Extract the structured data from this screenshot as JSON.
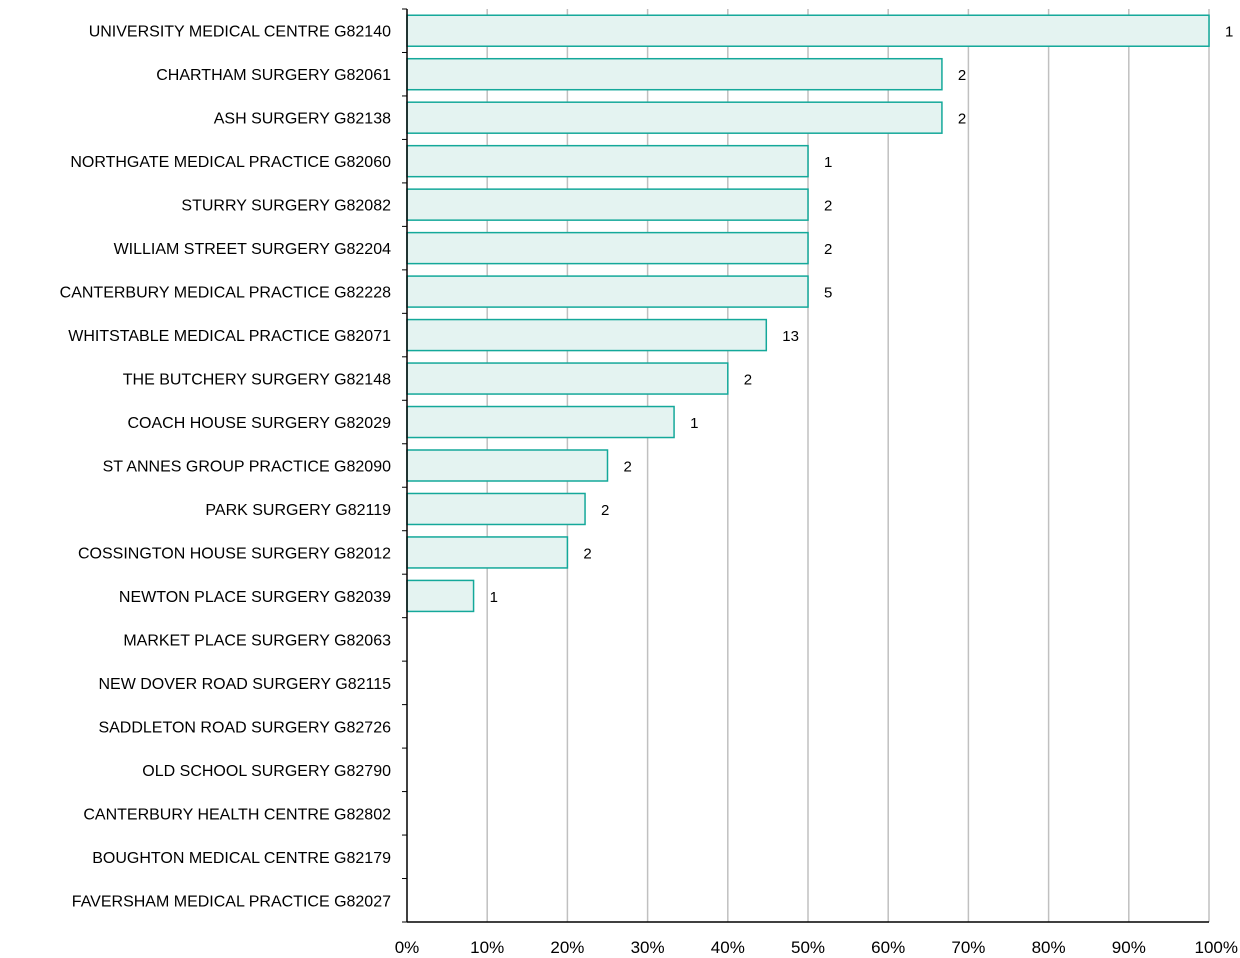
{
  "chart_data": {
    "type": "bar",
    "orientation": "horizontal",
    "categories": [
      "UNIVERSITY MEDICAL CENTRE G82140",
      "CHARTHAM SURGERY G82061",
      "ASH SURGERY G82138",
      "NORTHGATE MEDICAL PRACTICE G82060",
      "STURRY SURGERY G82082",
      "WILLIAM STREET SURGERY G82204",
      "CANTERBURY MEDICAL PRACTICE G82228",
      "WHITSTABLE MEDICAL PRACTICE G82071",
      "THE BUTCHERY SURGERY G82148",
      "COACH HOUSE SURGERY G82029",
      "ST ANNES GROUP PRACTICE G82090",
      "PARK SURGERY G82119",
      "COSSINGTON HOUSE SURGERY G82012",
      "NEWTON PLACE SURGERY G82039",
      "MARKET PLACE SURGERY G82063",
      "NEW DOVER ROAD SURGERY G82115",
      "SADDLETON ROAD SURGERY G82726",
      "OLD SCHOOL SURGERY G82790",
      "CANTERBURY HEALTH CENTRE G82802",
      "BOUGHTON MEDICAL CENTRE G82179",
      "FAVERSHAM MEDICAL PRACTICE G82027"
    ],
    "values": [
      100,
      66.7,
      66.7,
      50,
      50,
      50,
      50,
      44.8,
      40,
      33.3,
      25,
      22.2,
      20,
      8.3,
      0,
      0,
      0,
      0,
      0,
      0,
      0
    ],
    "data_labels": [
      "1",
      "2",
      "2",
      "1",
      "2",
      "2",
      "5",
      "13",
      "2",
      "1",
      "2",
      "2",
      "2",
      "1",
      "",
      "",
      "",
      "",
      "",
      "",
      ""
    ],
    "x_ticks": [
      "0%",
      "10%",
      "20%",
      "30%",
      "40%",
      "50%",
      "60%",
      "70%",
      "80%",
      "90%",
      "100%"
    ],
    "xlim": [
      0,
      100
    ],
    "title": "",
    "xlabel": "",
    "ylabel": "",
    "grid": "vertical",
    "legend": "none",
    "colors": {
      "bar_fill": "#e4f3f1",
      "bar_stroke": "#14a89a",
      "grid": "#c0c0c0",
      "axis": "#000000"
    }
  }
}
